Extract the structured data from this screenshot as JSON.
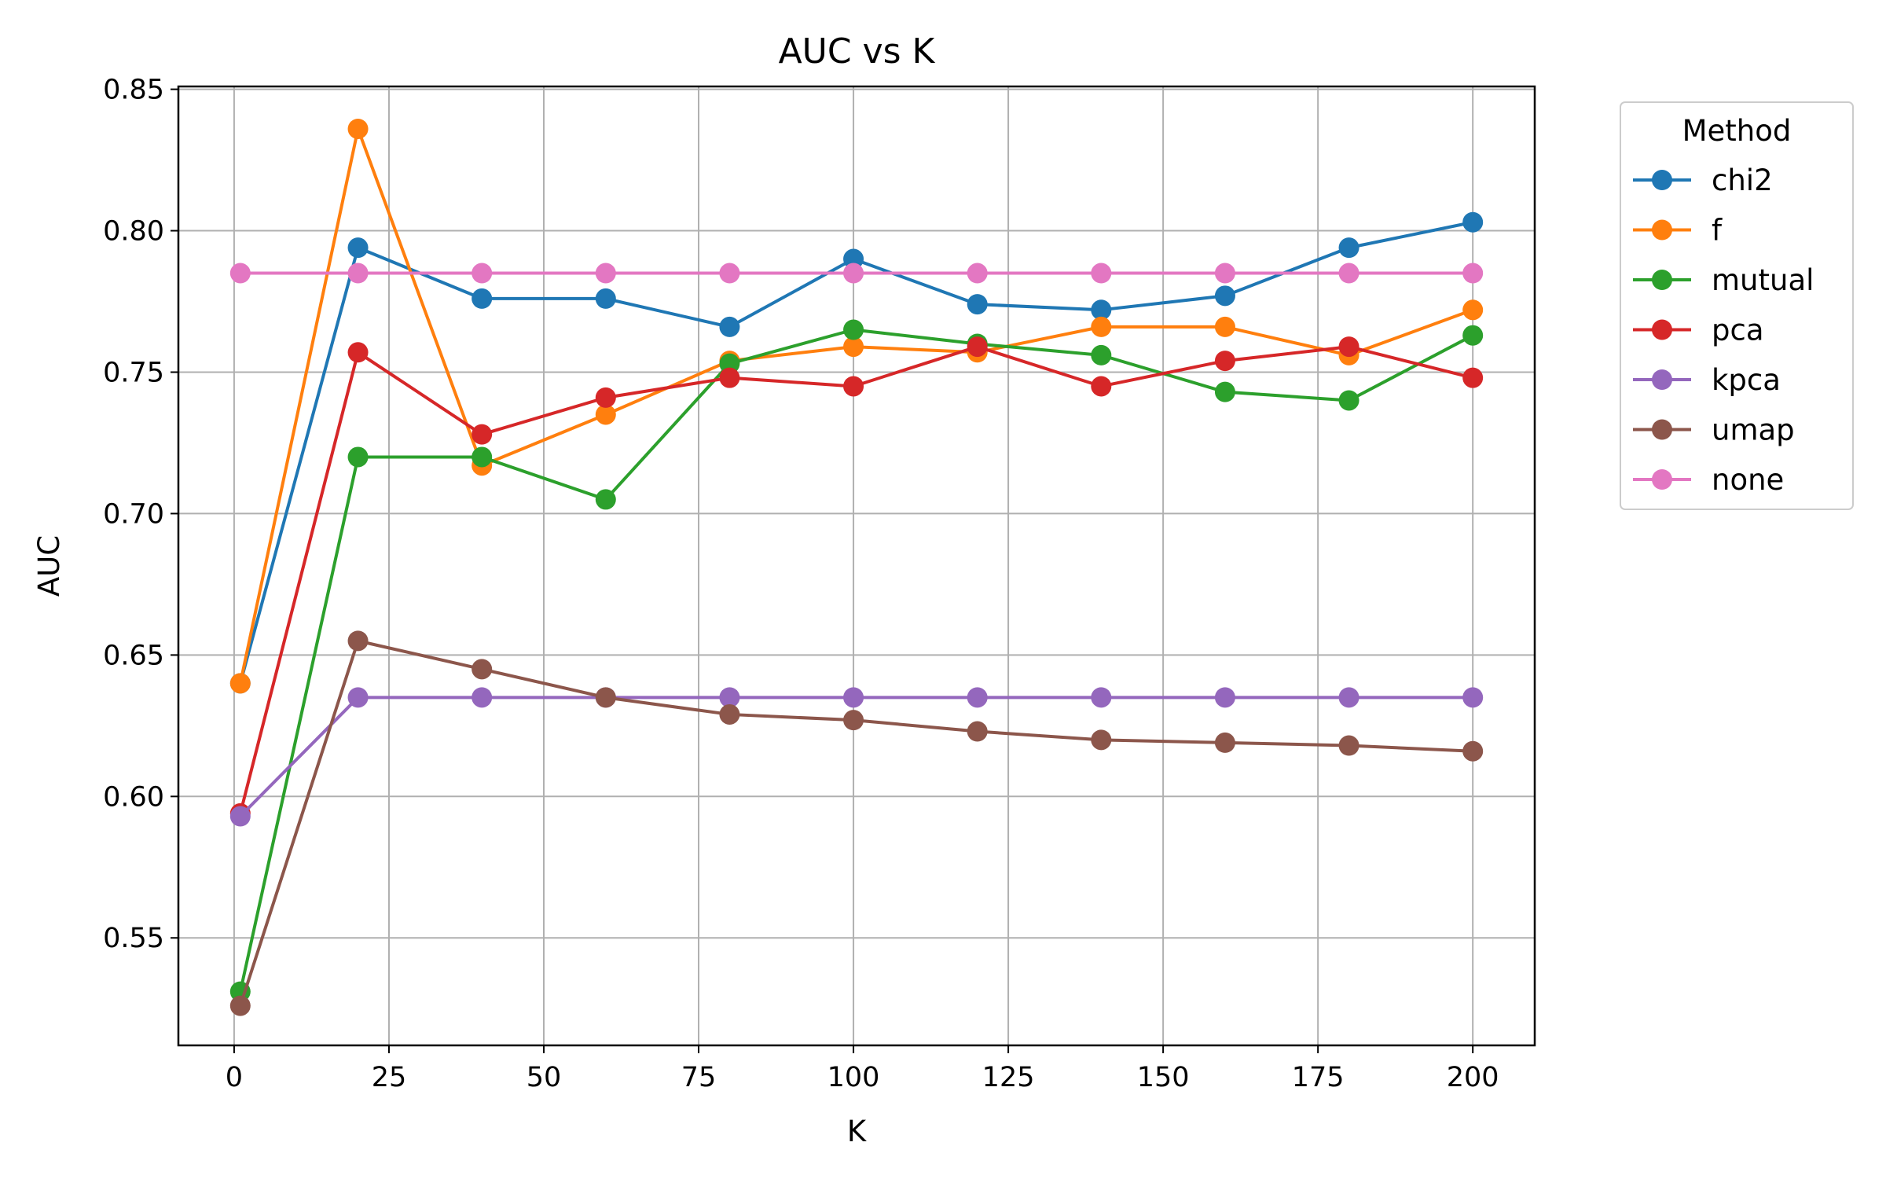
{
  "chart_data": {
    "type": "line",
    "title": "AUC vs K",
    "xlabel": "K",
    "ylabel": "AUC",
    "xlim": [
      -9,
      210
    ],
    "ylim": [
      0.512,
      0.851
    ],
    "xticks": [
      0,
      25,
      50,
      75,
      100,
      125,
      150,
      175,
      200
    ],
    "xtick_labels": [
      "0",
      "25",
      "50",
      "75",
      "100",
      "125",
      "150",
      "175",
      "200"
    ],
    "yticks": [
      0.55,
      0.6,
      0.65,
      0.7,
      0.75,
      0.8,
      0.85
    ],
    "ytick_labels": [
      "0.55",
      "0.60",
      "0.65",
      "0.70",
      "0.75",
      "0.80",
      "0.85"
    ],
    "grid": true,
    "legend": {
      "title": "Method",
      "placement": "outside right, top"
    },
    "x": [
      1,
      20,
      40,
      60,
      80,
      100,
      120,
      140,
      160,
      180,
      200
    ],
    "series": [
      {
        "name": "chi2",
        "color": "#1f77b4",
        "values": [
          0.64,
          0.794,
          0.776,
          0.776,
          0.766,
          0.79,
          0.774,
          0.772,
          0.777,
          0.794,
          0.803
        ]
      },
      {
        "name": "f",
        "color": "#ff7f0e",
        "values": [
          0.64,
          0.836,
          0.717,
          0.735,
          0.754,
          0.759,
          0.757,
          0.766,
          0.766,
          0.756,
          0.772
        ]
      },
      {
        "name": "mutual",
        "color": "#2ca02c",
        "values": [
          0.531,
          0.72,
          0.72,
          0.705,
          0.753,
          0.765,
          0.76,
          0.756,
          0.743,
          0.74,
          0.763
        ]
      },
      {
        "name": "pca",
        "color": "#d62728",
        "values": [
          0.594,
          0.757,
          0.728,
          0.741,
          0.748,
          0.745,
          0.759,
          0.745,
          0.754,
          0.759,
          0.748
        ]
      },
      {
        "name": "kpca",
        "color": "#9467bd",
        "values": [
          0.593,
          0.635,
          0.635,
          0.635,
          0.635,
          0.635,
          0.635,
          0.635,
          0.635,
          0.635,
          0.635
        ]
      },
      {
        "name": "umap",
        "color": "#8c564b",
        "values": [
          0.526,
          0.655,
          0.645,
          0.635,
          0.629,
          0.627,
          0.623,
          0.62,
          0.619,
          0.618,
          0.616
        ]
      },
      {
        "name": "none",
        "color": "#e377c2",
        "values": [
          0.785,
          0.785,
          0.785,
          0.785,
          0.785,
          0.785,
          0.785,
          0.785,
          0.785,
          0.785,
          0.785
        ]
      }
    ]
  }
}
